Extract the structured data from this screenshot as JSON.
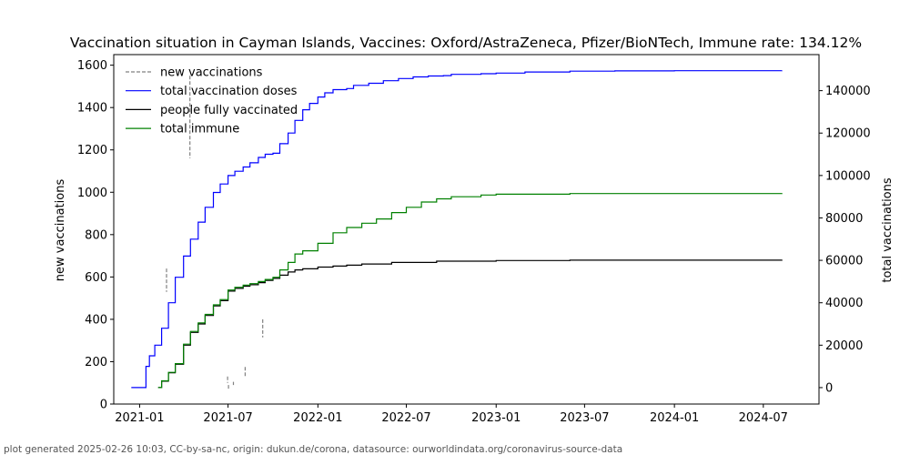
{
  "chart_data": {
    "type": "line",
    "title": "Vaccination situation in Cayman Islands, Vaccines: Oxford/AstraZeneca, Pfizer/BioNTech, Immune rate: 134.12%",
    "ylabel_left": "new vaccinations",
    "ylabel_right": "total vaccinations",
    "footer": "plot generated 2025-02-26 10:03, CC-by-sa-nc, origin: dukun.de/corona, datasource: ourworldindata.org/coronavirus-source-data",
    "xlim": [
      "2020-11-09",
      "2024-10-23"
    ],
    "ylim_left": [
      0,
      1650
    ],
    "ylim_right": [
      -7750,
      157000
    ],
    "grid": false,
    "legend_position": "top-left",
    "x_ticks": [
      "2021-01",
      "2021-07",
      "2022-01",
      "2022-07",
      "2023-01",
      "2023-07",
      "2024-01",
      "2024-07"
    ],
    "y_ticks_left": [
      0,
      200,
      400,
      600,
      800,
      1000,
      1200,
      1400,
      1600
    ],
    "y_ticks_right": [
      0,
      20000,
      40000,
      60000,
      80000,
      100000,
      120000,
      140000
    ],
    "series": [
      {
        "name": "new vaccinations",
        "axis": "left",
        "style": "dashed",
        "color": "#808080",
        "segments": [
          [
            [
              "2021-02-25",
              640
            ],
            [
              "2021-02-25",
              530
            ]
          ],
          [
            [
              "2021-04-14",
              1550
            ],
            [
              "2021-04-14",
              1160
            ]
          ],
          [
            [
              "2021-06-30",
              130
            ],
            [
              "2021-06-30",
              100
            ]
          ],
          [
            [
              "2021-07-02",
              90
            ],
            [
              "2021-07-02",
              70
            ]
          ],
          [
            [
              "2021-07-12",
              105
            ],
            [
              "2021-07-12",
              90
            ]
          ],
          [
            [
              "2021-08-05",
              175
            ],
            [
              "2021-08-05",
              130
            ]
          ],
          [
            [
              "2021-09-10",
              400
            ],
            [
              "2021-09-10",
              315
            ]
          ]
        ]
      },
      {
        "name": "total vaccination doses",
        "axis": "right",
        "color": "#0000ff",
        "points": [
          [
            "2020-12-15",
            0
          ],
          [
            "2021-01-13",
            0
          ],
          [
            "2021-01-14",
            10000
          ],
          [
            "2021-01-21",
            15000
          ],
          [
            "2021-02-01",
            20000
          ],
          [
            "2021-02-15",
            28000
          ],
          [
            "2021-03-01",
            40000
          ],
          [
            "2021-03-15",
            52000
          ],
          [
            "2021-04-01",
            62000
          ],
          [
            "2021-04-15",
            70000
          ],
          [
            "2021-05-01",
            78000
          ],
          [
            "2021-05-15",
            85000
          ],
          [
            "2021-06-01",
            92000
          ],
          [
            "2021-06-15",
            96000
          ],
          [
            "2021-07-01",
            100000
          ],
          [
            "2021-07-15",
            102000
          ],
          [
            "2021-08-01",
            104000
          ],
          [
            "2021-08-15",
            106000
          ],
          [
            "2021-09-01",
            108500
          ],
          [
            "2021-09-15",
            110000
          ],
          [
            "2021-10-01",
            110500
          ],
          [
            "2021-10-15",
            115000
          ],
          [
            "2021-11-01",
            120000
          ],
          [
            "2021-11-15",
            126000
          ],
          [
            "2021-12-01",
            131000
          ],
          [
            "2021-12-15",
            134000
          ],
          [
            "2022-01-01",
            137000
          ],
          [
            "2022-01-15",
            139000
          ],
          [
            "2022-02-01",
            140500
          ],
          [
            "2022-03-01",
            141000
          ],
          [
            "2022-03-15",
            142500
          ],
          [
            "2022-04-15",
            143500
          ],
          [
            "2022-05-15",
            144700
          ],
          [
            "2022-06-15",
            145700
          ],
          [
            "2022-07-15",
            146500
          ],
          [
            "2022-08-15",
            146900
          ],
          [
            "2022-09-15",
            147100
          ],
          [
            "2022-10-01",
            147700
          ],
          [
            "2022-12-01",
            148000
          ],
          [
            "2023-01-01",
            148300
          ],
          [
            "2023-03-01",
            148800
          ],
          [
            "2023-06-01",
            149200
          ],
          [
            "2023-09-01",
            149300
          ],
          [
            "2024-01-01",
            149400
          ],
          [
            "2024-08-08",
            149500
          ]
        ]
      },
      {
        "name": "people fully vaccinated",
        "axis": "right",
        "color": "#000000",
        "points": [
          [
            "2021-02-08",
            0
          ],
          [
            "2021-02-15",
            3000
          ],
          [
            "2021-03-01",
            7000
          ],
          [
            "2021-03-15",
            11000
          ],
          [
            "2021-04-01",
            20000
          ],
          [
            "2021-04-15",
            26000
          ],
          [
            "2021-05-01",
            30000
          ],
          [
            "2021-05-15",
            34000
          ],
          [
            "2021-06-01",
            38500
          ],
          [
            "2021-06-15",
            41000
          ],
          [
            "2021-07-01",
            45500
          ],
          [
            "2021-07-15",
            46800
          ],
          [
            "2021-08-01",
            47800
          ],
          [
            "2021-08-15",
            48500
          ],
          [
            "2021-09-01",
            49500
          ],
          [
            "2021-09-15",
            50500
          ],
          [
            "2021-10-01",
            51500
          ],
          [
            "2021-10-15",
            53000
          ],
          [
            "2021-11-01",
            54500
          ],
          [
            "2021-11-15",
            55500
          ],
          [
            "2021-12-01",
            56000
          ],
          [
            "2022-01-01",
            56800
          ],
          [
            "2022-02-01",
            57300
          ],
          [
            "2022-03-01",
            57700
          ],
          [
            "2022-04-01",
            58300
          ],
          [
            "2022-06-01",
            59000
          ],
          [
            "2022-09-01",
            59600
          ],
          [
            "2023-01-01",
            59900
          ],
          [
            "2023-06-01",
            60100
          ],
          [
            "2024-08-08",
            60300
          ]
        ]
      },
      {
        "name": "total immune",
        "axis": "right",
        "color": "#008000",
        "points": [
          [
            "2021-02-08",
            0
          ],
          [
            "2021-02-15",
            3200
          ],
          [
            "2021-03-01",
            7200
          ],
          [
            "2021-03-15",
            11300
          ],
          [
            "2021-04-01",
            20500
          ],
          [
            "2021-04-15",
            26500
          ],
          [
            "2021-05-01",
            30500
          ],
          [
            "2021-05-15",
            34500
          ],
          [
            "2021-06-01",
            39000
          ],
          [
            "2021-06-15",
            41500
          ],
          [
            "2021-07-01",
            46000
          ],
          [
            "2021-07-15",
            47300
          ],
          [
            "2021-08-01",
            48300
          ],
          [
            "2021-08-15",
            49000
          ],
          [
            "2021-09-01",
            50000
          ],
          [
            "2021-09-15",
            51000
          ],
          [
            "2021-10-01",
            52000
          ],
          [
            "2021-10-15",
            55500
          ],
          [
            "2021-11-01",
            59000
          ],
          [
            "2021-11-15",
            63000
          ],
          [
            "2021-12-01",
            64500
          ],
          [
            "2022-01-01",
            68000
          ],
          [
            "2022-02-01",
            73000
          ],
          [
            "2022-03-01",
            75500
          ],
          [
            "2022-04-01",
            77500
          ],
          [
            "2022-05-01",
            79500
          ],
          [
            "2022-06-01",
            82500
          ],
          [
            "2022-07-01",
            85000
          ],
          [
            "2022-08-01",
            87500
          ],
          [
            "2022-09-01",
            89000
          ],
          [
            "2022-10-01",
            90000
          ],
          [
            "2022-12-01",
            90800
          ],
          [
            "2023-01-01",
            91200
          ],
          [
            "2023-06-01",
            91500
          ],
          [
            "2024-08-08",
            91700
          ]
        ]
      }
    ]
  }
}
